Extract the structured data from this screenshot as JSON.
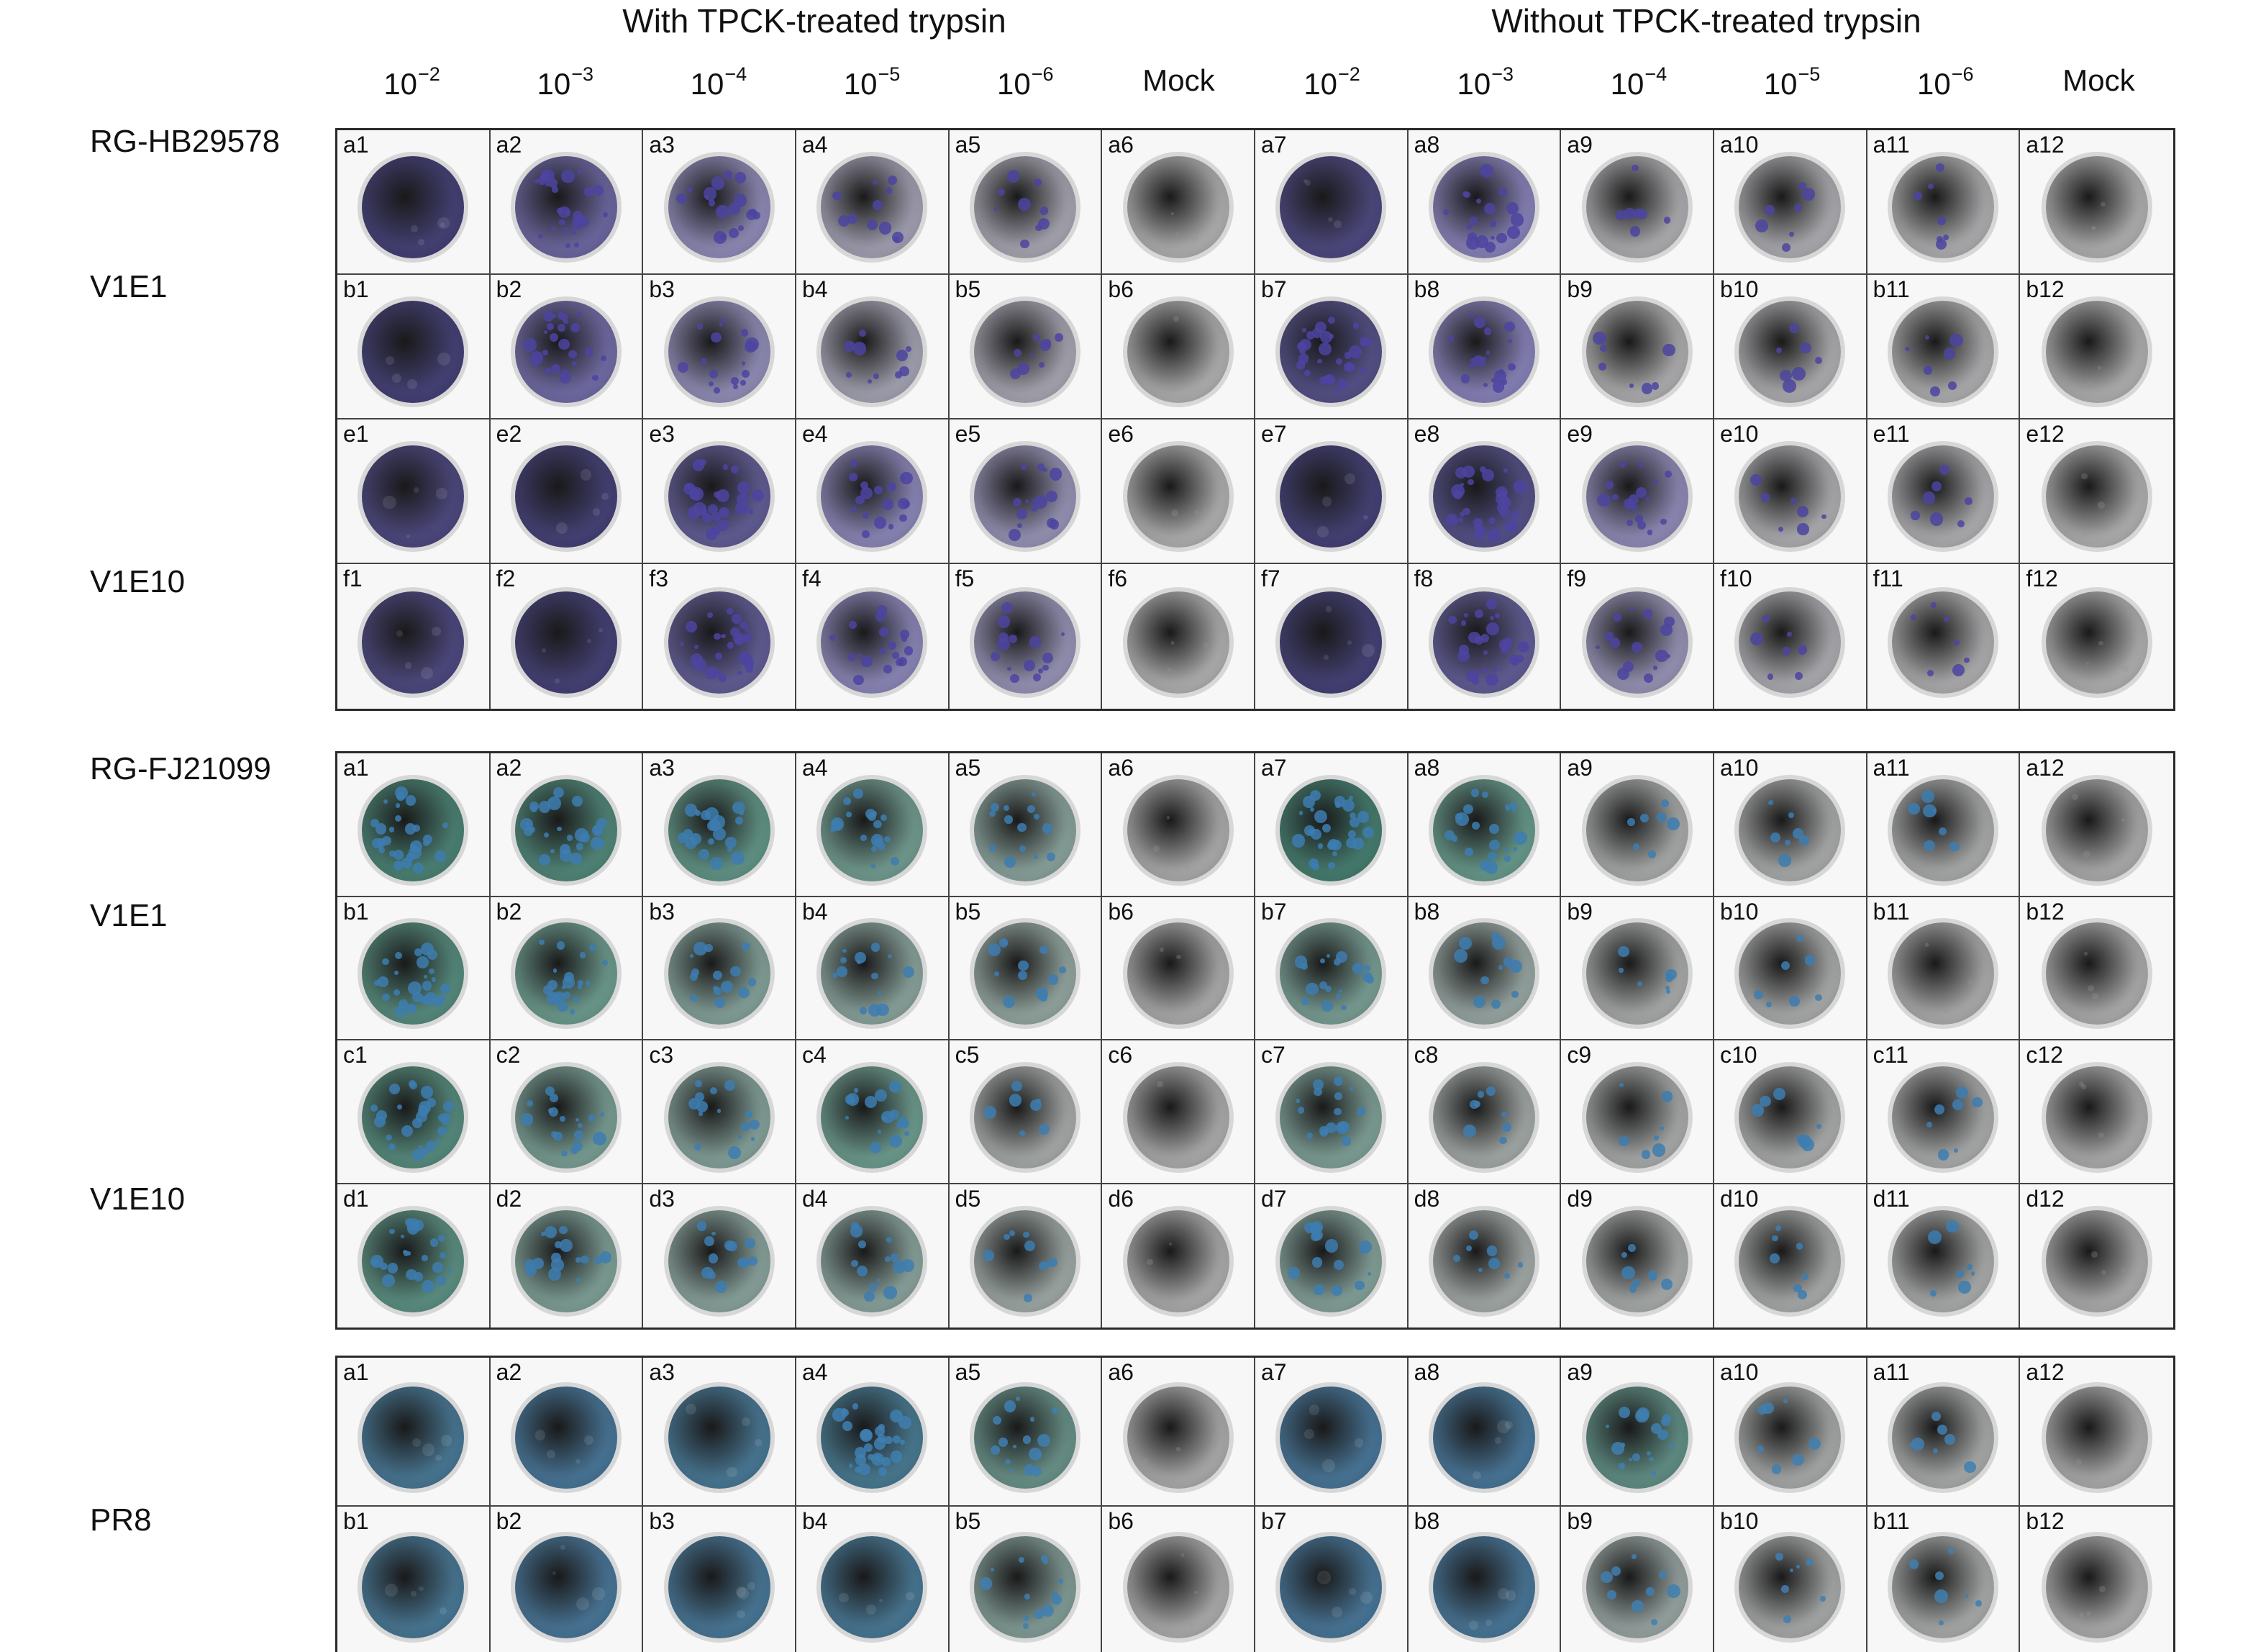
{
  "headers": {
    "with_trypsin": "With TPCK-treated trypsin",
    "without_trypsin": "Without TPCK-treated trypsin"
  },
  "columns": [
    {
      "base": "10",
      "exp": "−2"
    },
    {
      "base": "10",
      "exp": "−3"
    },
    {
      "base": "10",
      "exp": "−4"
    },
    {
      "base": "10",
      "exp": "−5"
    },
    {
      "base": "10",
      "exp": "−6"
    },
    {
      "base": "Mock",
      "exp": ""
    },
    {
      "base": "10",
      "exp": "−2"
    },
    {
      "base": "10",
      "exp": "−3"
    },
    {
      "base": "10",
      "exp": "−4"
    },
    {
      "base": "10",
      "exp": "−5"
    },
    {
      "base": "10",
      "exp": "−6"
    },
    {
      "base": "Mock",
      "exp": ""
    }
  ],
  "row_labels": {
    "hb": "RG-HB29578",
    "hb_v1e1": "V1E1",
    "hb_v1e10": "V1E10",
    "fj": "RG-FJ21099",
    "fj_v1e1": "V1E1",
    "fj_v1e10": "V1E10",
    "pr8": "PR8"
  },
  "panels": [
    {
      "name": "panel-rg-hb29578",
      "colors": {
        "dark": "#4a4680",
        "mid": "#8e88c8",
        "speck": "#4c44a0",
        "clear": "#bdbdbd"
      },
      "rows": [
        {
          "letter": "a",
          "density": [
            1.0,
            0.75,
            0.45,
            0.18,
            0.12,
            0,
            0.95,
            0.55,
            0.03,
            0.04,
            0.02,
            0
          ]
        },
        {
          "letter": "b",
          "density": [
            1.0,
            0.72,
            0.42,
            0.16,
            0.12,
            0,
            0.9,
            0.55,
            0.02,
            0.03,
            0.02,
            0
          ]
        },
        {
          "letter": "e",
          "density": [
            0.95,
            1.0,
            0.82,
            0.5,
            0.35,
            0,
            1.0,
            0.9,
            0.45,
            0.03,
            0.03,
            0
          ]
        },
        {
          "letter": "f",
          "density": [
            0.95,
            1.0,
            0.82,
            0.5,
            0.35,
            0,
            1.0,
            0.82,
            0.35,
            0.05,
            0.02,
            0
          ]
        }
      ]
    },
    {
      "name": "panel-rg-fj21099",
      "colors": {
        "dark": "#3f7d6e",
        "mid": "#6fa596",
        "speck": "#3d7cb0",
        "clear": "#b9b9b9"
      },
      "rows": [
        {
          "letter": "a",
          "density": [
            0.85,
            0.8,
            0.65,
            0.5,
            0.3,
            0,
            0.9,
            0.6,
            0.03,
            0.02,
            0.02,
            0
          ]
        },
        {
          "letter": "b",
          "density": [
            0.75,
            0.55,
            0.35,
            0.3,
            0.22,
            0,
            0.45,
            0.18,
            0.03,
            0.02,
            0,
            0
          ]
        },
        {
          "letter": "c",
          "density": [
            0.75,
            0.45,
            0.35,
            0.55,
            0.05,
            0,
            0.4,
            0.08,
            0.03,
            0.02,
            0.02,
            0
          ]
        },
        {
          "letter": "d",
          "density": [
            0.7,
            0.4,
            0.3,
            0.3,
            0.12,
            0,
            0.35,
            0.08,
            0.04,
            0.03,
            0.02,
            0
          ]
        }
      ]
    },
    {
      "name": "panel-pr8",
      "colors": {
        "dark": "#4e7fa4",
        "mid": "#4d8f82",
        "speck": "#3f7fb0",
        "clear": "#b9b9b9"
      },
      "rows": [
        {
          "letter": "a",
          "density": [
            0.95,
            1.0,
            0.95,
            0.9,
            0.4,
            0,
            1.0,
            1.0,
            0.45,
            0.03,
            0.02,
            0
          ]
        },
        {
          "letter": "b",
          "density": [
            0.95,
            1.0,
            0.98,
            0.95,
            0.25,
            0,
            1.0,
            1.0,
            0.12,
            0.03,
            0.02,
            0
          ]
        }
      ]
    }
  ]
}
